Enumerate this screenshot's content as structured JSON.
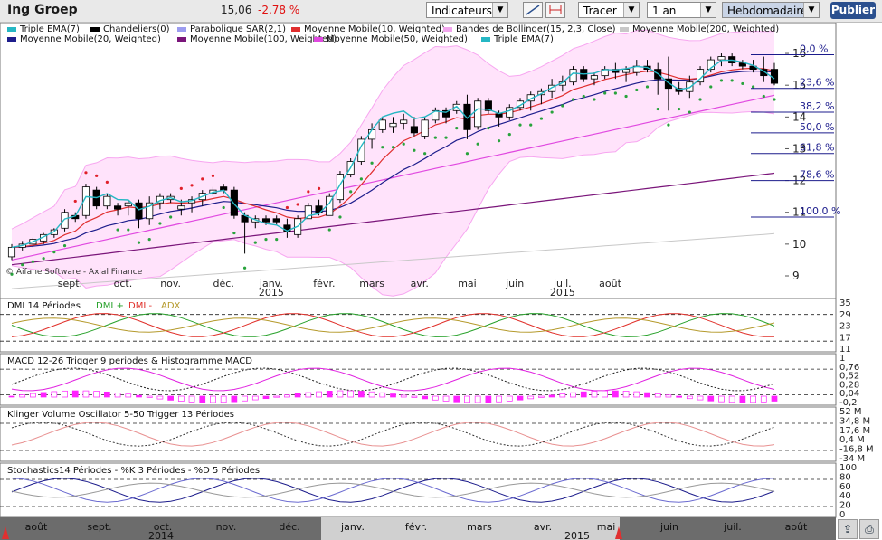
{
  "header": {
    "title": "Ing Groep",
    "price": "15,06",
    "change": "-2,78 %",
    "indicators_label": "Indicateurs",
    "draw_label": "Tracer",
    "period_value": "1 an",
    "frequency_value": "Hebdomadaire",
    "publish_label": "Publier"
  },
  "colors": {
    "up_candle": "#ffffff",
    "down_candle": "#000000",
    "bollinger_fill": "#ffe3fb",
    "bollinger_line": "#f7a6f0",
    "triple_ema": "#25b7c4",
    "sar": "#28a33c",
    "sar_high": "#e0202a",
    "ma10": "#e02e2e",
    "ma20": "#1d1d8c",
    "ma50": "#e048e0",
    "ma100": "#7a157a",
    "ma200": "#c8c8c8",
    "fib": "#1b1b8c",
    "dmi_plus": "#27a12a",
    "dmi_minus": "#e0302a",
    "adx": "#b59a2c",
    "macd": "#e020e0",
    "hist": "#ff20ff"
  },
  "chart_data": [
    {
      "type": "candlestick",
      "title": "Ing Groep",
      "watermark": "© Aifane Software - Axial Finance",
      "legend": [
        {
          "name": "Triple EMA(7)",
          "color": "#25b7c4"
        },
        {
          "name": "Chandeliers(0)",
          "color": "#000000"
        },
        {
          "name": "Parabolique SAR(2,1)",
          "color": "#9c9cf0"
        },
        {
          "name": "Moyenne Mobile(10, Weighted)",
          "color": "#e02e2e"
        },
        {
          "name": "Bandes de Bollinger(15, 2,3, Close)",
          "color": "#f2a6ee"
        },
        {
          "name": "Moyenne Mobile(200, Weighted)",
          "color": "#c8c8c8"
        },
        {
          "name": "Moyenne Mobile(20, Weighted)",
          "color": "#1d1d8c"
        },
        {
          "name": "Moyenne Mobile(100, Weighted)",
          "color": "#7a157a"
        },
        {
          "name": "Moyenne Mobile(50, Weighted)",
          "color": "#e048e0"
        },
        {
          "name": "Triple EMA(7)",
          "color": "#25b7c4"
        }
      ],
      "x_labels": [
        {
          "label": "sept.",
          "i": 5.5
        },
        {
          "label": "oct.",
          "i": 10.5
        },
        {
          "label": "nov.",
          "i": 15
        },
        {
          "label": "déc.",
          "i": 20
        },
        {
          "label": "janv.",
          "i": 24.5
        },
        {
          "label": "févr.",
          "i": 29.5
        },
        {
          "label": "mars",
          "i": 34
        },
        {
          "label": "avr.",
          "i": 38.5
        },
        {
          "label": "mai",
          "i": 43
        },
        {
          "label": "juin",
          "i": 47.5
        },
        {
          "label": "juil.",
          "i": 52
        },
        {
          "label": "août",
          "i": 56.5
        }
      ],
      "year_labels": [
        {
          "label": "2015",
          "i": 24.5
        },
        {
          "label": "2015",
          "i": 52
        }
      ],
      "ylim": [
        9,
        16.4
      ],
      "y_ticks": [
        9,
        10,
        11,
        12,
        13,
        14,
        15,
        16
      ],
      "fibonacci": [
        {
          "label": "0,0 %",
          "value": 15.96
        },
        {
          "label": "23,6 %",
          "value": 14.9
        },
        {
          "label": "38,2 %",
          "value": 14.15
        },
        {
          "label": "50,0 %",
          "value": 13.5
        },
        {
          "label": "61,8 %",
          "value": 12.85
        },
        {
          "label": "78,6 %",
          "value": 12.0
        },
        {
          "label": "100,0 %",
          "value": 10.85
        }
      ],
      "ohlc": [
        [
          9.6,
          10.0,
          9.5,
          9.9
        ],
        [
          9.9,
          10.1,
          9.8,
          10.0
        ],
        [
          10.0,
          10.2,
          9.9,
          10.15
        ],
        [
          10.1,
          10.35,
          10.0,
          10.3
        ],
        [
          10.3,
          10.5,
          10.2,
          10.45
        ],
        [
          10.5,
          11.1,
          10.4,
          11.0
        ],
        [
          10.9,
          11.0,
          10.7,
          10.8
        ],
        [
          10.9,
          11.9,
          10.8,
          11.8
        ],
        [
          11.7,
          11.8,
          11.1,
          11.2
        ],
        [
          11.2,
          11.6,
          11.1,
          11.5
        ],
        [
          11.2,
          11.3,
          10.9,
          11.1
        ],
        [
          11.2,
          11.4,
          10.9,
          11.3
        ],
        [
          11.3,
          11.4,
          10.5,
          10.8
        ],
        [
          10.8,
          11.5,
          10.6,
          11.3
        ],
        [
          11.3,
          11.6,
          11.1,
          11.5
        ],
        [
          11.4,
          11.6,
          11.3,
          11.5
        ],
        [
          11.1,
          11.4,
          10.9,
          11.2
        ],
        [
          11.3,
          11.5,
          11.0,
          11.4
        ],
        [
          11.4,
          11.7,
          11.2,
          11.6
        ],
        [
          11.6,
          11.8,
          11.5,
          11.7
        ],
        [
          11.8,
          11.9,
          11.6,
          11.7
        ],
        [
          11.7,
          11.8,
          10.8,
          10.9
        ],
        [
          10.9,
          11.0,
          9.7,
          10.7
        ],
        [
          10.7,
          10.9,
          10.5,
          10.8
        ],
        [
          10.8,
          10.9,
          10.6,
          10.7
        ],
        [
          10.8,
          10.9,
          10.6,
          10.7
        ],
        [
          10.6,
          10.8,
          10.2,
          10.4
        ],
        [
          10.3,
          10.9,
          10.2,
          10.8
        ],
        [
          10.8,
          11.3,
          10.8,
          11.2
        ],
        [
          11.2,
          11.4,
          10.9,
          11.0
        ],
        [
          10.9,
          11.6,
          10.9,
          11.5
        ],
        [
          11.4,
          12.3,
          11.3,
          12.2
        ],
        [
          12.2,
          12.7,
          12.1,
          12.6
        ],
        [
          12.6,
          13.4,
          12.5,
          13.3
        ],
        [
          13.3,
          13.8,
          13.0,
          13.6
        ],
        [
          13.6,
          14.0,
          13.5,
          13.9
        ],
        [
          13.7,
          14.0,
          13.5,
          13.8
        ],
        [
          13.8,
          14.1,
          13.6,
          13.9
        ],
        [
          13.7,
          14.0,
          13.4,
          13.5
        ],
        [
          13.4,
          14.0,
          13.3,
          13.9
        ],
        [
          13.9,
          14.3,
          13.8,
          14.2
        ],
        [
          14.2,
          14.3,
          13.8,
          14.0
        ],
        [
          14.2,
          14.5,
          14.1,
          14.4
        ],
        [
          14.4,
          14.7,
          13.3,
          13.6
        ],
        [
          13.7,
          14.6,
          13.6,
          14.5
        ],
        [
          14.5,
          14.6,
          14.1,
          14.2
        ],
        [
          14.1,
          14.2,
          13.7,
          14.0
        ],
        [
          14.0,
          14.4,
          13.9,
          14.3
        ],
        [
          14.3,
          14.6,
          14.2,
          14.5
        ],
        [
          14.5,
          14.8,
          14.2,
          14.7
        ],
        [
          14.7,
          14.9,
          14.4,
          14.8
        ],
        [
          14.8,
          15.2,
          14.6,
          15.0
        ],
        [
          15.0,
          15.3,
          14.8,
          15.1
        ],
        [
          15.1,
          15.6,
          15.0,
          15.5
        ],
        [
          15.5,
          15.6,
          15.1,
          15.2
        ],
        [
          15.2,
          15.4,
          15.0,
          15.3
        ],
        [
          15.3,
          15.6,
          15.2,
          15.5
        ],
        [
          15.5,
          15.7,
          15.2,
          15.4
        ],
        [
          15.4,
          15.6,
          15.1,
          15.5
        ],
        [
          15.4,
          15.8,
          15.3,
          15.6
        ],
        [
          15.6,
          15.8,
          15.4,
          15.5
        ],
        [
          15.5,
          15.7,
          14.7,
          15.2
        ],
        [
          15.2,
          15.9,
          14.2,
          14.9
        ],
        [
          14.9,
          15.1,
          14.7,
          14.8
        ],
        [
          14.8,
          15.3,
          14.6,
          15.1
        ],
        [
          15.1,
          15.6,
          15.0,
          15.5
        ],
        [
          15.5,
          15.9,
          15.4,
          15.8
        ],
        [
          15.8,
          16.0,
          15.6,
          15.9
        ],
        [
          15.9,
          16.0,
          15.6,
          15.7
        ],
        [
          15.7,
          15.8,
          15.5,
          15.6
        ],
        [
          15.6,
          15.8,
          15.4,
          15.5
        ],
        [
          15.5,
          15.9,
          15.1,
          15.3
        ],
        [
          15.5,
          15.7,
          15.0,
          15.06
        ]
      ]
    },
    {
      "type": "line",
      "title": "DMI 14 Périodes",
      "series_names": [
        "DMI +",
        "DMI -",
        "ADX"
      ],
      "ylim": [
        11,
        35
      ],
      "y_ticks": [
        "35",
        "29",
        "23",
        "17",
        "11"
      ]
    },
    {
      "type": "line",
      "title": "MACD 12-26  Trigger 9 periodes & Histogramme MACD",
      "ylim": [
        -0.2,
        1
      ],
      "y_ticks": [
        "1",
        "0,76",
        "0,52",
        "0,28",
        "0,04",
        "-0,2"
      ]
    },
    {
      "type": "line",
      "title": "Klinger Volume Oscillator 5-50  Trigger 13 Périodes",
      "ylim": [
        -34,
        52
      ],
      "y_ticks": [
        "52 M",
        "34,8 M",
        "17,6 M",
        "0,4 M",
        "-16,8 M",
        "-34 M"
      ]
    },
    {
      "type": "line",
      "title": "Stochastics14 Périodes  -  %K 3 Périodes  -  %D 5 Périodes",
      "ylim": [
        0,
        100
      ],
      "y_ticks": [
        "100",
        "80",
        "60",
        "40",
        "20",
        "0"
      ]
    }
  ],
  "timeline": {
    "labels": [
      "août",
      "sept.",
      "oct.",
      "nov.",
      "déc.",
      "janv.",
      "févr.",
      "mars",
      "avr.",
      "mai",
      "juin",
      "juil.",
      "août"
    ],
    "years": [
      "2014",
      "2015"
    ]
  }
}
